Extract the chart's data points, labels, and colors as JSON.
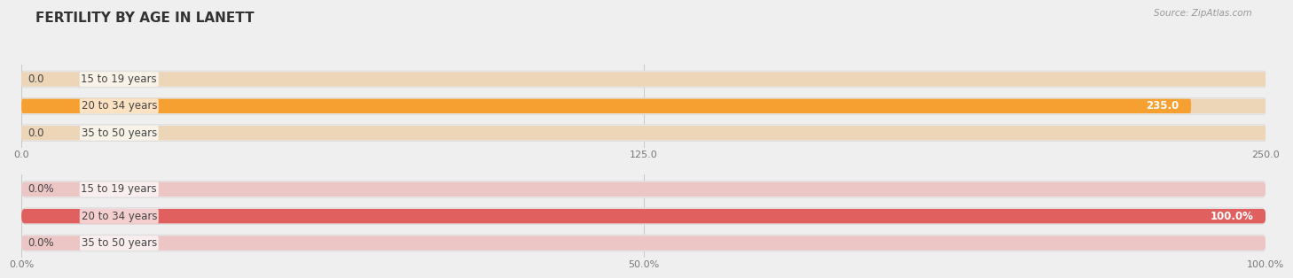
{
  "title": "FERTILITY BY AGE IN LANETT",
  "source_text": "Source: ZipAtlas.com",
  "top_chart": {
    "categories": [
      "15 to 19 years",
      "20 to 34 years",
      "35 to 50 years"
    ],
    "values": [
      0.0,
      235.0,
      0.0
    ],
    "max_val": 250.0,
    "xticks": [
      0.0,
      125.0,
      250.0
    ],
    "xtick_labels": [
      "0.0",
      "125.0",
      "250.0"
    ],
    "bar_color": "#F5A030",
    "bar_bg_color": "#EDD5B8",
    "pill_bg_color": "#EBEBEB",
    "value_labels": [
      "0.0",
      "235.0",
      "0.0"
    ],
    "value_label_dark": "#888888"
  },
  "bottom_chart": {
    "categories": [
      "15 to 19 years",
      "20 to 34 years",
      "35 to 50 years"
    ],
    "values": [
      0.0,
      100.0,
      0.0
    ],
    "max_val": 100.0,
    "xticks": [
      0.0,
      50.0,
      100.0
    ],
    "xtick_labels": [
      "0.0%",
      "50.0%",
      "100.0%"
    ],
    "bar_color": "#E06060",
    "bar_bg_color": "#ECC5C5",
    "pill_bg_color": "#EBEBEB",
    "value_labels": [
      "0.0%",
      "100.0%",
      "0.0%"
    ],
    "value_label_dark": "#888888"
  },
  "fig_bg_color": "#EFEFEF",
  "label_color": "#444444",
  "title_color": "#333333",
  "source_color": "#999999",
  "bar_height": 0.62,
  "label_fontsize": 8.5,
  "title_fontsize": 11,
  "tick_fontsize": 8,
  "source_fontsize": 7.5,
  "value_fontsize": 8.5
}
